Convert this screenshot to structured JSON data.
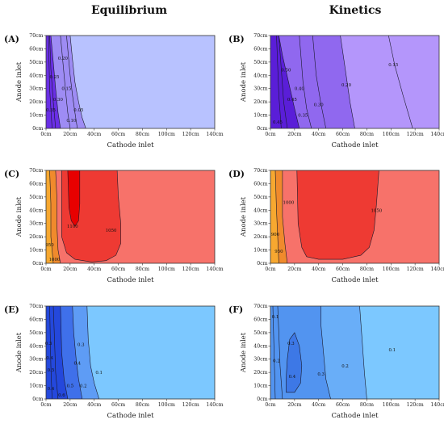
{
  "column_titles": [
    "Equilibrium",
    "Kinetics"
  ],
  "chart_data": [
    {
      "type": "contour",
      "panel": "(A)",
      "xlabel": "Cathode inlet",
      "ylabel": "Anode inlet",
      "x_ticks": [
        "0cm",
        "20cm",
        "40cm",
        "60cm",
        "80cm",
        "100cm",
        "120cm",
        "140cm"
      ],
      "y_ticks": [
        "0cm",
        "10cm",
        "20cm",
        "30cm",
        "40cm",
        "50cm",
        "60cm",
        "70cm"
      ],
      "xlim": [
        0,
        140
      ],
      "ylim": [
        0,
        70
      ],
      "colors": [
        "#b8c2ff",
        "#9e8cf4",
        "#6a2fe6"
      ],
      "contours": [
        {
          "label": "0.05",
          "x": 27,
          "y": 14
        },
        {
          "label": "0.10",
          "x": 21,
          "y": 6
        },
        {
          "label": "0.15",
          "x": 17,
          "y": 30
        },
        {
          "label": "0.20",
          "x": 14,
          "y": 53
        },
        {
          "label": "0.25",
          "x": 7,
          "y": 39
        },
        {
          "label": "0.30",
          "x": 10,
          "y": 22
        },
        {
          "label": "0.35",
          "x": 4,
          "y": 14
        }
      ]
    },
    {
      "type": "contour",
      "panel": "(B)",
      "xlabel": "Cathode inlet",
      "ylabel": "Anode inlet",
      "x_ticks": [
        "0cm",
        "20cm",
        "40cm",
        "60cm",
        "80cm",
        "100cm",
        "120cm",
        "140cm"
      ],
      "y_ticks": [
        "0cm",
        "10cm",
        "20cm",
        "30cm",
        "40cm",
        "50cm",
        "60cm",
        "70cm"
      ],
      "xlim": [
        0,
        140
      ],
      "ylim": [
        0,
        70
      ],
      "colors": [
        "#b496fb",
        "#9068ef",
        "#5a1ed8"
      ],
      "contours": [
        {
          "label": "0.15",
          "x": 102,
          "y": 48
        },
        {
          "label": "0.20",
          "x": 63,
          "y": 33
        },
        {
          "label": "0.30",
          "x": 40,
          "y": 18
        },
        {
          "label": "0.35",
          "x": 27,
          "y": 10
        },
        {
          "label": "0.40",
          "x": 24,
          "y": 30
        },
        {
          "label": "0.45",
          "x": 18,
          "y": 22
        },
        {
          "label": "0.50",
          "x": 13,
          "y": 44
        },
        {
          "label": "0.45",
          "x": 6,
          "y": 5
        }
      ]
    },
    {
      "type": "contour",
      "panel": "(C)",
      "xlabel": "Cathode inlet",
      "ylabel": "Anode inlet",
      "x_ticks": [
        "0cm",
        "20cm",
        "40cm",
        "60cm",
        "80cm",
        "100cm",
        "120cm",
        "140cm"
      ],
      "y_ticks": [
        "0cm",
        "10cm",
        "20cm",
        "30cm",
        "40cm",
        "50cm",
        "60cm",
        "70cm"
      ],
      "xlim": [
        0,
        140
      ],
      "ylim": [
        0,
        70
      ],
      "colors": [
        "#f7726a",
        "#ee3a33",
        "#e80000",
        "#f08a2c",
        "#f7a830"
      ],
      "contours": [
        {
          "label": "1100",
          "x": 22,
          "y": 28
        },
        {
          "label": "1050",
          "x": 54,
          "y": 25
        },
        {
          "label": "950",
          "x": 3,
          "y": 14
        },
        {
          "label": "1000",
          "x": 7,
          "y": 3
        }
      ]
    },
    {
      "type": "contour",
      "panel": "(D)",
      "xlabel": "Cathode inlet",
      "ylabel": "Anode inlet",
      "x_ticks": [
        "0cm",
        "20cm",
        "40cm",
        "60cm",
        "80cm",
        "100cm",
        "120cm",
        "140cm"
      ],
      "y_ticks": [
        "0cm",
        "10cm",
        "20cm",
        "30cm",
        "40cm",
        "50cm",
        "60cm",
        "70cm"
      ],
      "xlim": [
        0,
        140
      ],
      "ylim": [
        0,
        70
      ],
      "colors": [
        "#f7726a",
        "#ee3a33",
        "#f08a2c",
        "#f7a830"
      ],
      "contours": [
        {
          "label": "1050",
          "x": 88,
          "y": 40
        },
        {
          "label": "1000",
          "x": 15,
          "y": 46
        },
        {
          "label": "900",
          "x": 4,
          "y": 22
        },
        {
          "label": "950",
          "x": 7,
          "y": 9
        }
      ]
    },
    {
      "type": "contour",
      "panel": "(E)",
      "xlabel": "Cathode inlet",
      "ylabel": "Anode inlet",
      "x_ticks": [
        "0cm",
        "20cm",
        "40cm",
        "60cm",
        "80cm",
        "100cm",
        "120cm",
        "140cm"
      ],
      "y_ticks": [
        "0cm",
        "10cm",
        "20cm",
        "30cm",
        "40cm",
        "50cm",
        "60cm",
        "70cm"
      ],
      "xlim": [
        0,
        140
      ],
      "ylim": [
        0,
        70
      ],
      "colors": [
        "#7cc8ff",
        "#5e9cf5",
        "#3f70ea",
        "#2448dc"
      ],
      "contours": [
        {
          "label": "0.1",
          "x": 44,
          "y": 20
        },
        {
          "label": "0.2",
          "x": 31,
          "y": 10
        },
        {
          "label": "0.3",
          "x": 29,
          "y": 41
        },
        {
          "label": "0.4",
          "x": 26,
          "y": 27
        },
        {
          "label": "0.5",
          "x": 20,
          "y": 10
        },
        {
          "label": "0.6",
          "x": 13,
          "y": 3
        },
        {
          "label": "0.3",
          "x": 2,
          "y": 42
        },
        {
          "label": "0.4",
          "x": 3,
          "y": 31
        },
        {
          "label": "0.5",
          "x": 4,
          "y": 22
        },
        {
          "label": "0.4",
          "x": 4,
          "y": 8
        }
      ]
    },
    {
      "type": "contour",
      "panel": "(F)",
      "xlabel": "Cathode inlet",
      "ylabel": "Anode inlet",
      "x_ticks": [
        "0cm",
        "20cm",
        "40cm",
        "60cm",
        "80cm",
        "100cm",
        "120cm",
        "140cm"
      ],
      "y_ticks": [
        "0cm",
        "10cm",
        "20cm",
        "30cm",
        "40cm",
        "50cm",
        "60cm",
        "70cm"
      ],
      "xlim": [
        0,
        140
      ],
      "ylim": [
        0,
        70
      ],
      "colors": [
        "#7cc8ff",
        "#69aef8",
        "#5294f0",
        "#3d78e6"
      ],
      "contours": [
        {
          "label": "0.1",
          "x": 101,
          "y": 37
        },
        {
          "label": "0.2",
          "x": 62,
          "y": 25
        },
        {
          "label": "0.3",
          "x": 42,
          "y": 19
        },
        {
          "label": "0.3",
          "x": 17,
          "y": 42
        },
        {
          "label": "0.4",
          "x": 18,
          "y": 17
        },
        {
          "label": "0.2",
          "x": 5,
          "y": 29
        },
        {
          "label": "0.1",
          "x": 4,
          "y": 62
        }
      ]
    }
  ]
}
